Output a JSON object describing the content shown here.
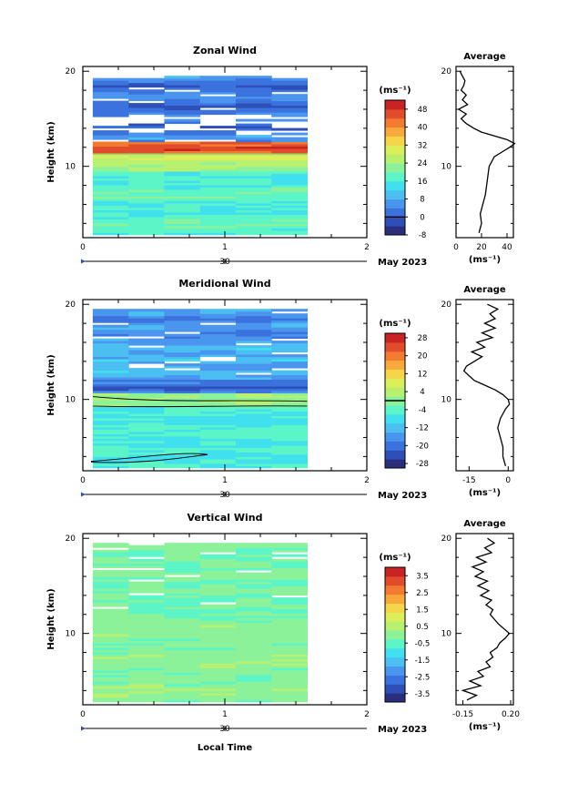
{
  "chart_data": [
    {
      "type": "heatmap",
      "title": "Zonal Wind",
      "ylabel": "Height (km)",
      "xlim": [
        0,
        2
      ],
      "ylim": [
        2.5,
        20.5
      ],
      "xticks": [
        "0",
        "1",
        "2"
      ],
      "yticks": [
        "10",
        "20"
      ],
      "date_axis": {
        "day": "30",
        "label": "May 2023"
      },
      "colorbar": {
        "unit": "(ms⁻¹)",
        "min": -8,
        "max": 52,
        "ticks": [
          "48",
          "40",
          "32",
          "24",
          "16",
          "8",
          "0",
          "-8"
        ],
        "zero_contour": true
      },
      "avg_panel": {
        "title": "Average",
        "xlim": [
          0,
          45
        ],
        "xticks": [
          "0",
          "20",
          "40"
        ],
        "xlabel": "(ms⁻¹)"
      },
      "profile": [
        [
          3,
          18
        ],
        [
          4,
          20
        ],
        [
          5,
          19
        ],
        [
          6,
          21
        ],
        [
          7,
          23
        ],
        [
          8,
          24
        ],
        [
          9,
          25
        ],
        [
          10,
          26
        ],
        [
          11,
          30
        ],
        [
          11.5,
          36
        ],
        [
          12,
          42
        ],
        [
          12.4,
          46
        ],
        [
          12.8,
          40
        ],
        [
          13.2,
          30
        ],
        [
          13.6,
          20
        ],
        [
          14,
          14
        ],
        [
          14.5,
          8
        ],
        [
          15,
          4
        ],
        [
          15.5,
          8
        ],
        [
          16,
          2
        ],
        [
          16.5,
          9
        ],
        [
          17,
          5
        ],
        [
          17.5,
          8
        ],
        [
          18,
          4
        ],
        [
          18.5,
          6
        ],
        [
          19,
          7
        ],
        [
          20,
          3
        ]
      ]
    },
    {
      "type": "heatmap",
      "title": "Meridional Wind",
      "ylabel": "Height (km)",
      "xlim": [
        0,
        2
      ],
      "ylim": [
        2.5,
        20.5
      ],
      "xticks": [
        "0",
        "1",
        "2"
      ],
      "yticks": [
        "10",
        "20"
      ],
      "date_axis": {
        "day": "30",
        "label": "May 2023"
      },
      "colorbar": {
        "unit": "(ms⁻¹)",
        "min": -30,
        "max": 30,
        "ticks": [
          "28",
          "20",
          "12",
          "4",
          "-4",
          "-12",
          "-20",
          "-28"
        ],
        "zero_contour": true
      },
      "avg_panel": {
        "title": "Average",
        "xlim": [
          -20,
          2
        ],
        "xticks": [
          "-15",
          "0"
        ],
        "xlabel": "(ms⁻¹)"
      },
      "profile": [
        [
          3,
          -1
        ],
        [
          4,
          -2
        ],
        [
          5,
          -2
        ],
        [
          6,
          -3
        ],
        [
          7,
          -4
        ],
        [
          8,
          -3
        ],
        [
          9,
          -1
        ],
        [
          9.5,
          0.5
        ],
        [
          10,
          0
        ],
        [
          10.5,
          -2
        ],
        [
          11,
          -5
        ],
        [
          11.5,
          -9
        ],
        [
          12,
          -13
        ],
        [
          12.5,
          -15
        ],
        [
          13,
          -17
        ],
        [
          13.5,
          -16
        ],
        [
          14,
          -13
        ],
        [
          14.5,
          -10
        ],
        [
          15,
          -14
        ],
        [
          15.5,
          -9
        ],
        [
          16,
          -12
        ],
        [
          16.5,
          -6
        ],
        [
          17,
          -10
        ],
        [
          17.5,
          -5
        ],
        [
          18,
          -9
        ],
        [
          18.5,
          -5
        ],
        [
          19,
          -7
        ],
        [
          19.5,
          -4
        ],
        [
          20,
          -8
        ]
      ]
    },
    {
      "type": "heatmap",
      "title": "Vertical Wind",
      "ylabel": "Height (km)",
      "xlabel": "Local Time",
      "xlim": [
        0,
        2
      ],
      "ylim": [
        2.5,
        20.5
      ],
      "xticks": [
        "0",
        "1",
        "2"
      ],
      "yticks": [
        "10",
        "20"
      ],
      "date_axis": {
        "day": "30",
        "label": "May 2023"
      },
      "colorbar": {
        "unit": "(ms⁻¹)",
        "min": -4,
        "max": 4,
        "ticks": [
          "3.5",
          "2.5",
          "1.5",
          "0.5",
          "-0.5",
          "-1.5",
          "-2.5",
          "-3.5"
        ],
        "zero_contour": false
      },
      "avg_panel": {
        "title": "Average",
        "xlim": [
          -0.2,
          0.22
        ],
        "xticks": [
          "-0.15",
          "0.20"
        ],
        "xlabel": "(ms⁻¹)"
      },
      "profile": [
        [
          3,
          -0.12
        ],
        [
          3.5,
          -0.05
        ],
        [
          4,
          -0.15
        ],
        [
          4.5,
          -0.02
        ],
        [
          5,
          -0.1
        ],
        [
          5.5,
          0.0
        ],
        [
          6,
          -0.04
        ],
        [
          6.5,
          0.05
        ],
        [
          7,
          0.02
        ],
        [
          7.5,
          0.07
        ],
        [
          8,
          0.05
        ],
        [
          8.5,
          0.1
        ],
        [
          9,
          0.12
        ],
        [
          9.5,
          0.16
        ],
        [
          10,
          0.19
        ],
        [
          10.5,
          0.15
        ],
        [
          11,
          0.11
        ],
        [
          11.5,
          0.08
        ],
        [
          12,
          0.05
        ],
        [
          12.5,
          0.07
        ],
        [
          13,
          0.02
        ],
        [
          13.5,
          0.06
        ],
        [
          14,
          -0.02
        ],
        [
          14.5,
          0.04
        ],
        [
          15,
          -0.04
        ],
        [
          15.5,
          0.03
        ],
        [
          16,
          -0.06
        ],
        [
          16.5,
          0.0
        ],
        [
          17,
          -0.08
        ],
        [
          17.5,
          0.02
        ],
        [
          18,
          -0.05
        ],
        [
          18.5,
          0.06
        ],
        [
          19,
          0.01
        ],
        [
          19.5,
          0.08
        ],
        [
          20,
          0.03
        ]
      ]
    }
  ],
  "colormap": [
    "#2b2e7c",
    "#2e4fb8",
    "#3b72de",
    "#4a95ee",
    "#4cbff2",
    "#40e0ee",
    "#5cf5c8",
    "#8cf29a",
    "#b8f070",
    "#dcee58",
    "#f6d548",
    "#f9a93c",
    "#f27b30",
    "#e14c2a",
    "#c82424"
  ]
}
